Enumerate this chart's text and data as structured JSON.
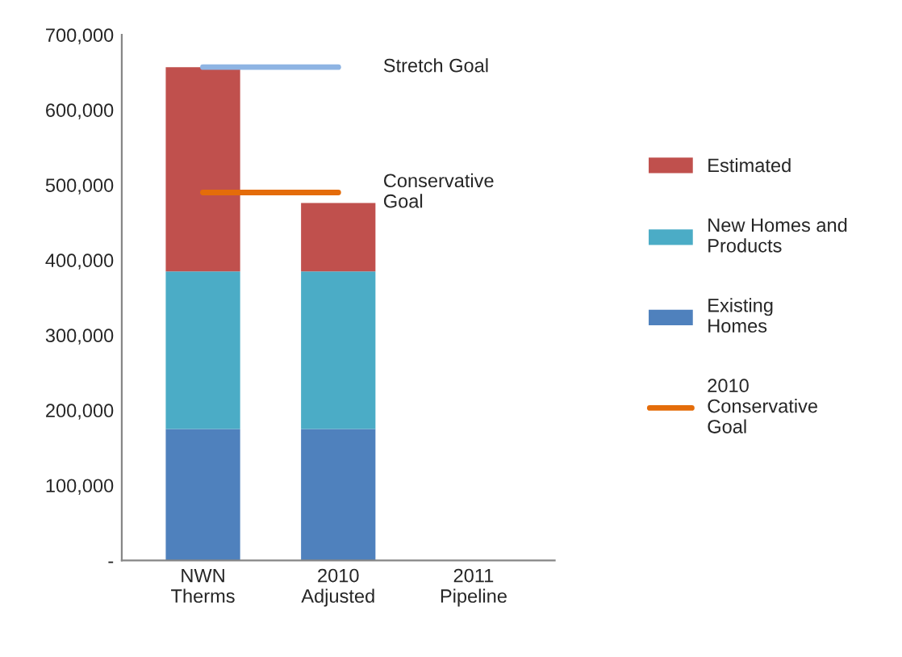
{
  "chart_data": {
    "type": "bar",
    "stacked": true,
    "categories": [
      "NWN\nTherms",
      "2010\nAdjusted",
      "2011\nPipeline"
    ],
    "series": [
      {
        "name": "Existing Homes",
        "color": "#4f81bd",
        "values": [
          175000,
          175000,
          null
        ]
      },
      {
        "name": "New Homes and Products",
        "color": "#4bacc6",
        "values": [
          210000,
          210000,
          null
        ]
      },
      {
        "name": "Estimated",
        "color": "#c0504d",
        "values": [
          272000,
          91000,
          null
        ]
      },
      {
        "name": "2010 Conservative Goal",
        "type": "line",
        "color": "#e46c0a",
        "values": [
          490000,
          490000,
          null
        ]
      },
      {
        "type": "line",
        "color": "#8eb4e3",
        "values": [
          657000,
          657000,
          null
        ]
      }
    ],
    "annotations": [
      {
        "text": "Stretch Goal",
        "x": "2010\nAdjusted",
        "y": 657000
      },
      {
        "text": "Conservative\nGoal",
        "x": "2010\nAdjusted",
        "y": 490000
      }
    ],
    "ylim": [
      0,
      700000
    ],
    "yticks": [
      {
        "value": 0,
        "label": "-"
      },
      {
        "value": 100000,
        "label": "100,000"
      },
      {
        "value": 200000,
        "label": "200,000"
      },
      {
        "value": 300000,
        "label": "300,000"
      },
      {
        "value": 400000,
        "label": "400,000"
      },
      {
        "value": 500000,
        "label": "500,000"
      },
      {
        "value": 600000,
        "label": "600,000"
      },
      {
        "value": 700000,
        "label": "700,000"
      }
    ],
    "legend": "right",
    "grid": false
  }
}
